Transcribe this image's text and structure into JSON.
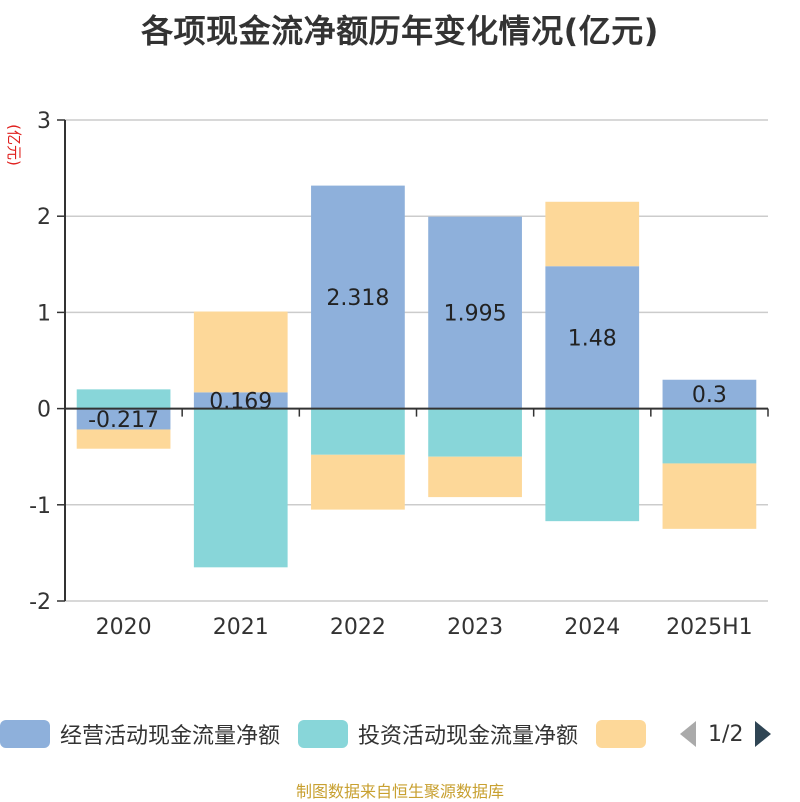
{
  "title": "各项现金流净额历年变化情况(亿元)",
  "source": "制图数据来自恒生聚源数据库",
  "legend": {
    "items": [
      {
        "label": "经营活动现金流量净额",
        "color": "#8eb0db"
      },
      {
        "label": "投资活动现金流量净额",
        "color": "#88d6d9"
      },
      {
        "label": "",
        "color": "#fdd899"
      }
    ],
    "page": "1/2"
  },
  "chart_data": {
    "type": "bar",
    "stacked": true,
    "categories": [
      "2020",
      "2021",
      "2022",
      "2023",
      "2024",
      "2025H1"
    ],
    "ylabel": "(亿元)",
    "ylim": [
      -2,
      3
    ],
    "yticks": [
      3,
      2,
      1,
      0,
      -1,
      -2
    ],
    "grid": true,
    "legend_position": "bottom",
    "series": [
      {
        "name": "经营活动现金流量净额",
        "color": "#8eb0db",
        "values": [
          -0.217,
          0.169,
          2.318,
          1.995,
          1.48,
          0.3
        ],
        "labels": [
          "-0.217",
          "0.169",
          "2.318",
          "1.995",
          "1.48",
          "0.3"
        ]
      },
      {
        "name": "投资活动现金流量净额",
        "color": "#88d6d9",
        "values": [
          0.2,
          -1.65,
          -0.48,
          -0.5,
          -1.17,
          -0.57
        ]
      },
      {
        "name": "",
        "color": "#fdd899",
        "values": [
          -0.2,
          0.84,
          -0.57,
          -0.42,
          0.67,
          -0.68
        ]
      }
    ]
  }
}
